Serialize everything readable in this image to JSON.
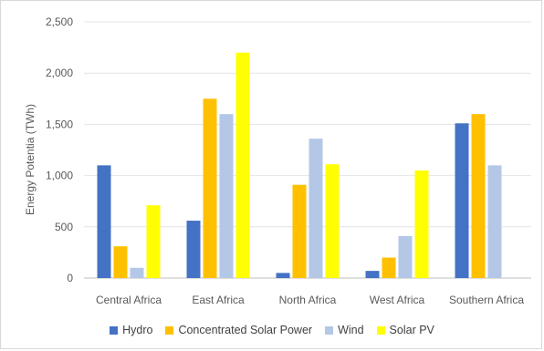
{
  "chart_data": {
    "type": "bar",
    "title": "",
    "xlabel": "",
    "ylabel": "Energy Potentia  (TWh)",
    "ylim": [
      0,
      2500
    ],
    "yticks": [
      0,
      500,
      1000,
      1500,
      2000,
      2500
    ],
    "ytick_labels": [
      "0",
      "500",
      "1,000",
      "1,500",
      "2,000",
      "2,500"
    ],
    "grid": true,
    "legend_position": "bottom",
    "categories": [
      "Central Africa",
      "East Africa",
      "North Africa",
      "West Africa",
      "Southern Africa"
    ],
    "series": [
      {
        "name": "Hydro",
        "color": "#4472c4",
        "values": [
          1100,
          560,
          50,
          70,
          1510
        ]
      },
      {
        "name": "Concentrated Solar Power",
        "color": "#ffc000",
        "values": [
          310,
          1750,
          910,
          200,
          1600
        ]
      },
      {
        "name": "Wind",
        "color": "#b4c7e7",
        "values": [
          100,
          1600,
          1360,
          410,
          1100
        ]
      },
      {
        "name": "Solar PV",
        "color": "#ffff00",
        "values": [
          710,
          2200,
          1110,
          1050,
          0
        ]
      }
    ]
  }
}
